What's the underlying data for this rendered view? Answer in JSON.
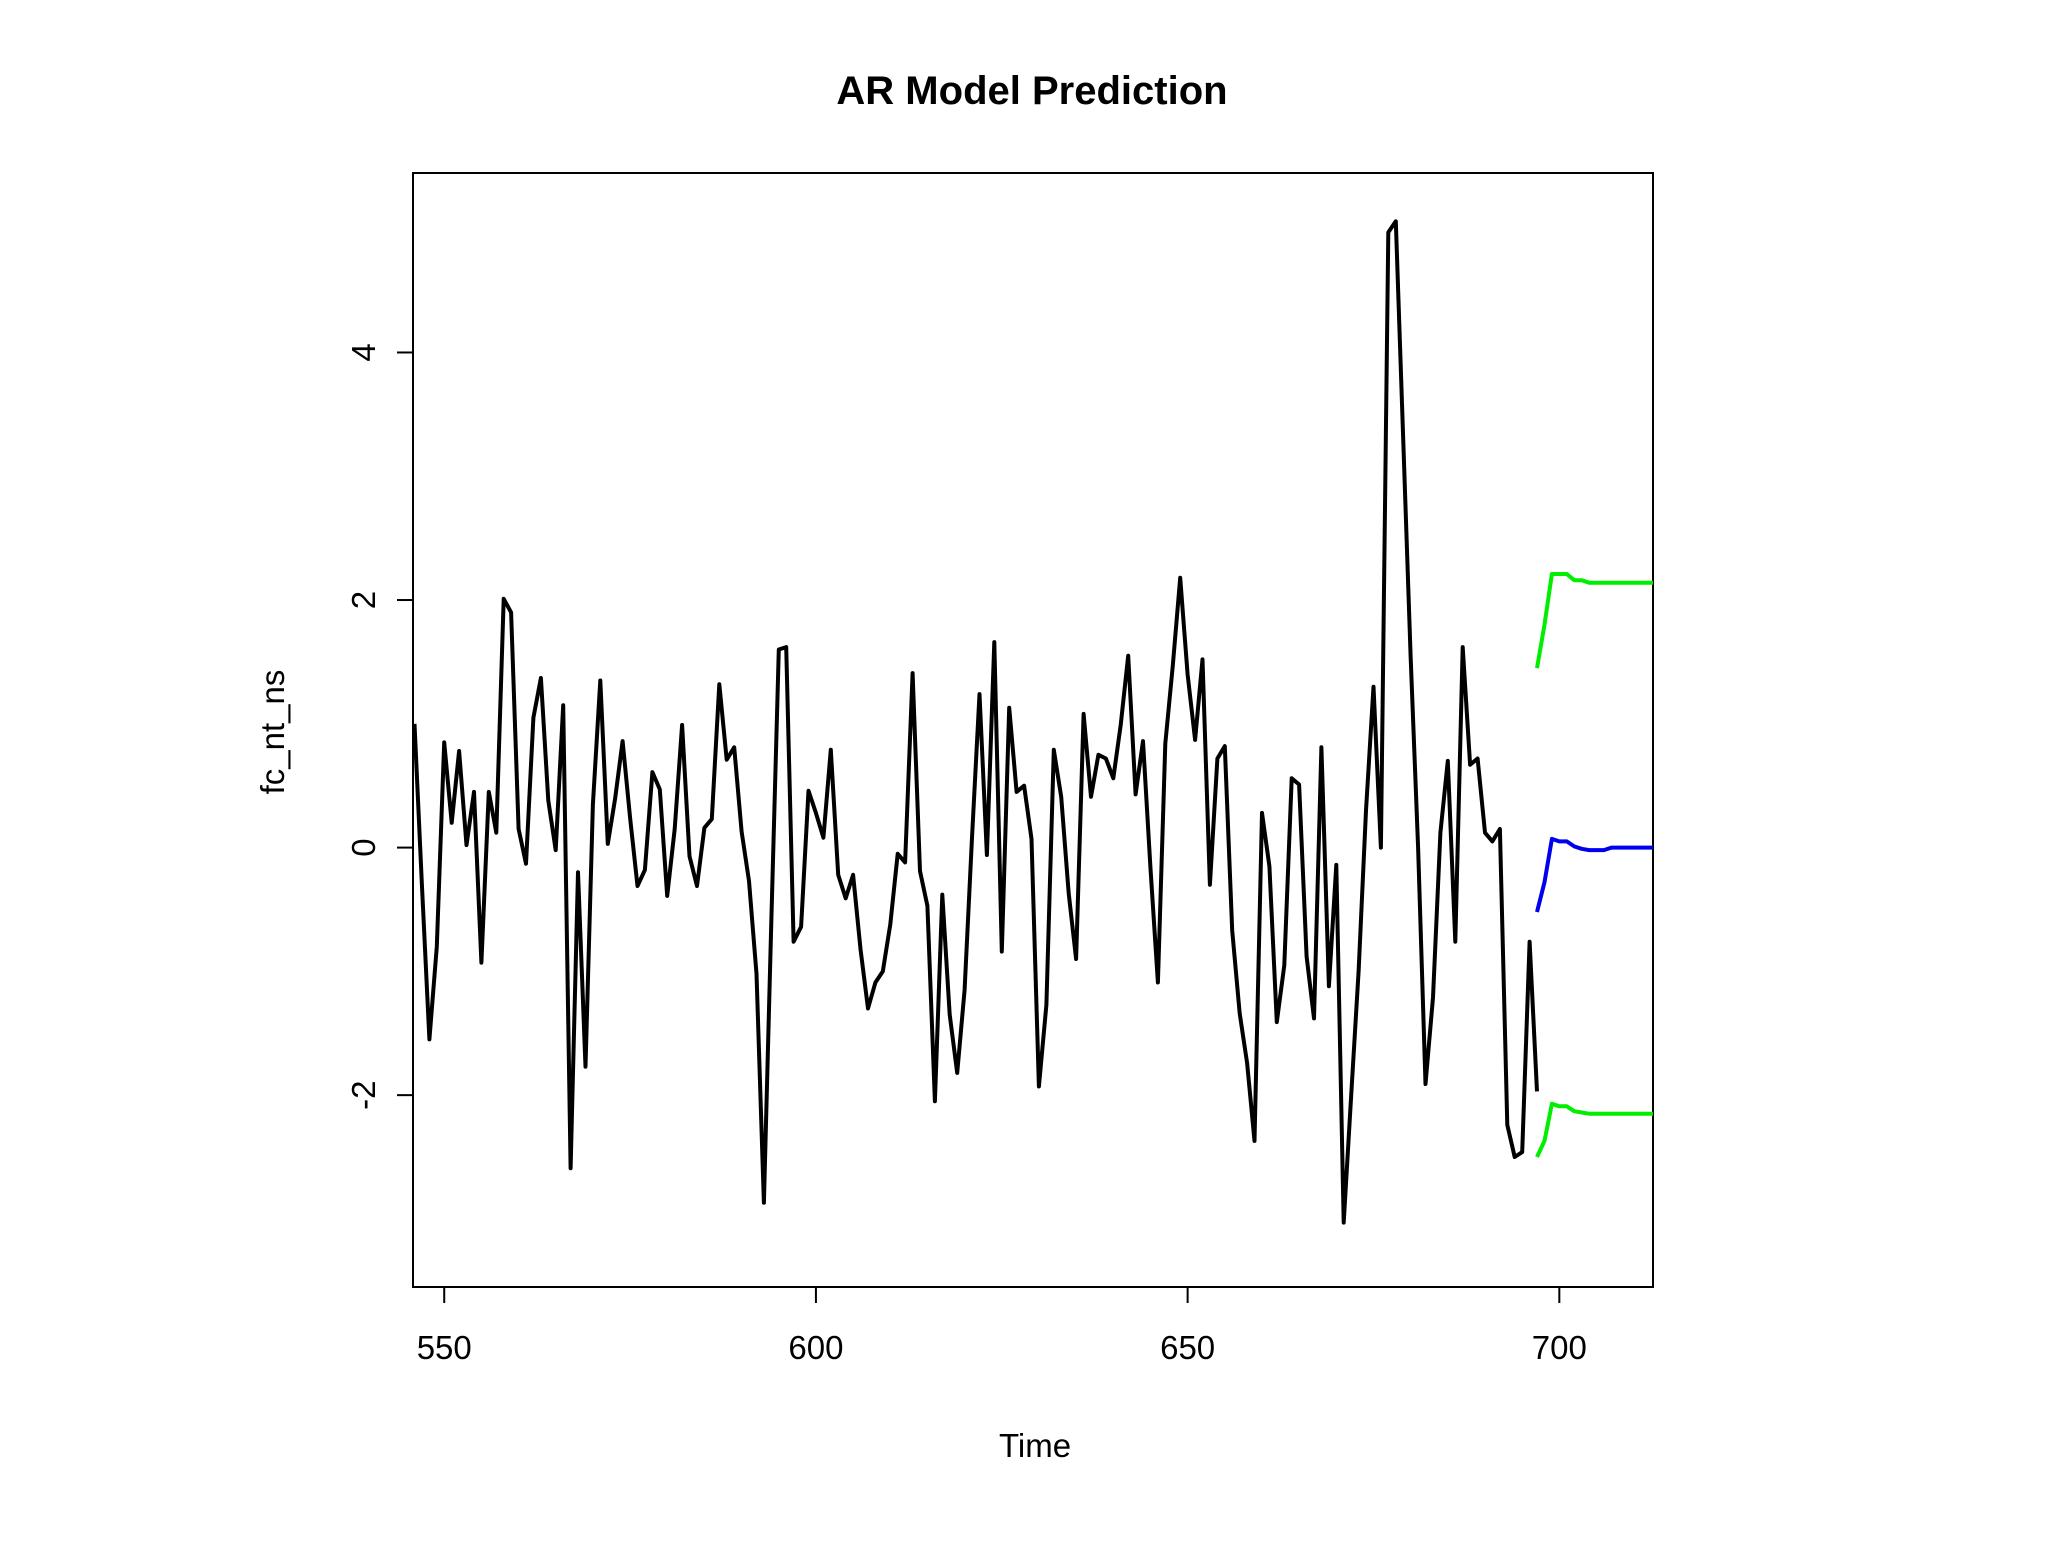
{
  "chart_data": {
    "type": "line",
    "title": "AR Model Prediction",
    "xlabel": "Time",
    "ylabel": "fc_nt_ns",
    "xlim": [
      545.8,
      712.6
    ],
    "ylim": [
      -3.55,
      5.45
    ],
    "x_ticks": [
      550,
      600,
      650,
      700
    ],
    "y_ticks": [
      -2,
      0,
      2,
      4
    ],
    "x_tick_labels": [
      "550",
      "600",
      "650",
      "700"
    ],
    "y_tick_labels": [
      "-2",
      "0",
      "2",
      "4"
    ],
    "grid": false,
    "legend": "none",
    "series": [
      {
        "color": "#000000",
        "x_start": 546,
        "values": [
          1.0,
          -0.3,
          -1.55,
          -0.8,
          0.85,
          0.2,
          0.78,
          0.02,
          0.45,
          -0.93,
          0.45,
          0.12,
          2.01,
          1.9,
          0.15,
          -0.13,
          1.05,
          1.37,
          0.38,
          -0.02,
          1.15,
          -2.59,
          -0.2,
          -1.77,
          0.35,
          1.35,
          0.03,
          0.4,
          0.86,
          0.24,
          -0.31,
          -0.18,
          0.61,
          0.47,
          -0.39,
          0.15,
          0.99,
          -0.07,
          -0.31,
          0.16,
          0.23,
          1.32,
          0.71,
          0.81,
          0.13,
          -0.27,
          -1.02,
          -2.87,
          -0.6,
          1.6,
          1.62,
          -0.76,
          -0.64,
          0.46,
          0.28,
          0.08,
          0.79,
          -0.22,
          -0.41,
          -0.22,
          -0.82,
          -1.3,
          -1.09,
          -1.0,
          -0.62,
          -0.05,
          -0.12,
          1.41,
          -0.19,
          -0.47,
          -2.05,
          -0.38,
          -1.35,
          -1.82,
          -1.15,
          0.08,
          1.24,
          -0.06,
          1.66,
          -0.84,
          1.13,
          0.45,
          0.5,
          0.07,
          -1.93,
          -1.27,
          0.79,
          0.41,
          -0.37,
          -0.9,
          1.08,
          0.41,
          0.75,
          0.72,
          0.56,
          0.99,
          1.55,
          0.43,
          0.86,
          -0.17,
          -1.09,
          0.84,
          1.47,
          2.18,
          1.4,
          0.87,
          1.52,
          -0.3,
          0.72,
          0.82,
          -0.67,
          -1.34,
          -1.74,
          -2.37,
          0.28,
          -0.15,
          -1.41,
          -0.95,
          0.56,
          0.51,
          -0.88,
          -1.38,
          0.81,
          -1.12,
          -0.14,
          -3.03,
          -2.0,
          -1.0,
          0.3,
          1.3,
          0.0,
          4.97,
          5.06,
          3.3,
          1.55,
          0.0,
          -1.91,
          -1.21,
          0.12,
          0.7,
          -0.76,
          1.62,
          0.67,
          0.72,
          0.12,
          0.05,
          0.15,
          -2.24,
          -2.5,
          -2.46,
          -0.76,
          -1.97
        ]
      },
      {
        "color": "#0000ee",
        "x": [
          697,
          698,
          699,
          700,
          701,
          702,
          703,
          704,
          705,
          706,
          707,
          708,
          709,
          710,
          711,
          712,
          712.6
        ],
        "values": [
          -0.52,
          -0.28,
          0.07,
          0.05,
          0.05,
          0.01,
          -0.01,
          -0.02,
          -0.02,
          -0.02,
          0.0,
          0.0,
          0.0,
          0.0,
          0.0,
          0.0,
          0.0
        ]
      },
      {
        "color": "#00ee00",
        "x": [
          697,
          698,
          699,
          700,
          701,
          702,
          703,
          704,
          705,
          706,
          707,
          708,
          709,
          710,
          711,
          712,
          712.6
        ],
        "values": [
          1.45,
          1.8,
          2.21,
          2.21,
          2.21,
          2.16,
          2.16,
          2.14,
          2.14,
          2.14,
          2.14,
          2.14,
          2.14,
          2.14,
          2.14,
          2.14,
          2.14
        ]
      },
      {
        "color": "#00ee00",
        "x": [
          697,
          698,
          699,
          700,
          701,
          702,
          703,
          704,
          705,
          706,
          707,
          708,
          709,
          710,
          711,
          712,
          712.6
        ],
        "values": [
          -2.5,
          -2.37,
          -2.07,
          -2.09,
          -2.09,
          -2.13,
          -2.14,
          -2.15,
          -2.15,
          -2.15,
          -2.15,
          -2.15,
          -2.15,
          -2.15,
          -2.15,
          -2.15,
          -2.15
        ]
      }
    ]
  }
}
